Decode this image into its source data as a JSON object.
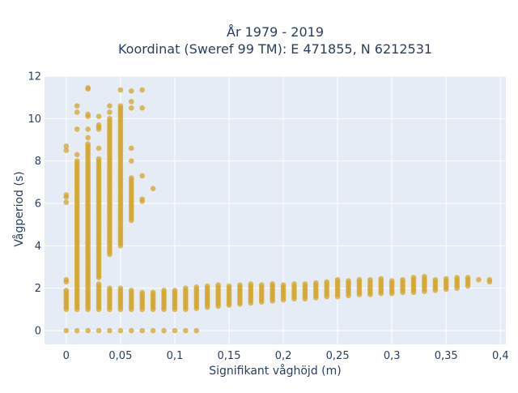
{
  "chart_data": {
    "type": "scatter",
    "title_line1": "År 1979 - 2019",
    "title_line2": "Koordinat (Sweref 99 TM): E 471855, N 6212531",
    "xlabel": "Signifikant våghöjd (m)",
    "ylabel": "Vågperiod (s)",
    "xlim": [
      -0.02,
      0.405
    ],
    "ylim": [
      -0.65,
      12.0
    ],
    "x_ticks": [
      0,
      0.05,
      0.1,
      0.15,
      0.2,
      0.25,
      0.3,
      0.35,
      0.4
    ],
    "x_tick_labels": [
      "0",
      "0,05",
      "0,1",
      "0,15",
      "0,2",
      "0,25",
      "0,3",
      "0,35",
      "0,4"
    ],
    "y_ticks": [
      0,
      2,
      4,
      6,
      8,
      10,
      12
    ],
    "y_tick_labels": [
      "0",
      "2",
      "4",
      "6",
      "8",
      "10",
      "12"
    ],
    "grid": true,
    "background_color": "#e5ecf6",
    "marker_color": "#d4a628",
    "series": [
      {
        "name": "",
        "columns": [
          {
            "x": 0.0,
            "y_ranges": [
              [
                1.0,
                1.9
              ]
            ],
            "y_points": [
              0,
              2.3,
              2.4,
              6.05,
              6.3,
              6.4,
              8.5,
              8.7
            ]
          },
          {
            "x": 0.01,
            "y_ranges": [
              [
                1.0,
                8.0
              ]
            ],
            "y_points": [
              0,
              8.3,
              9.5,
              10.3,
              10.6
            ]
          },
          {
            "x": 0.02,
            "y_ranges": [
              [
                1.0,
                8.8
              ]
            ],
            "y_points": [
              0,
              9.1,
              9.5,
              10.1,
              10.2,
              11.4,
              11.45
            ]
          },
          {
            "x": 0.03,
            "y_ranges": [
              [
                1.0,
                2.2
              ],
              [
                2.5,
                8.1
              ]
            ],
            "y_points": [
              0,
              8.6,
              9.5,
              9.6,
              9.7,
              10.1
            ]
          },
          {
            "x": 0.04,
            "y_ranges": [
              [
                1.0,
                2.0
              ],
              [
                3.6,
                10.0
              ]
            ],
            "y_points": [
              0,
              10.3,
              10.6
            ]
          },
          {
            "x": 0.05,
            "y_ranges": [
              [
                1.0,
                2.0
              ],
              [
                4.0,
                10.6
              ]
            ],
            "y_points": [
              0,
              11.35
            ]
          },
          {
            "x": 0.06,
            "y_ranges": [
              [
                1.0,
                1.9
              ],
              [
                5.2,
                7.2
              ]
            ],
            "y_points": [
              0,
              8.0,
              8.6,
              10.5,
              10.8,
              11.3
            ]
          },
          {
            "x": 0.07,
            "y_ranges": [
              [
                1.0,
                1.85
              ]
            ],
            "y_points": [
              0,
              6.1,
              6.2,
              7.3,
              10.5,
              11.35
            ]
          },
          {
            "x": 0.08,
            "y_ranges": [
              [
                1.0,
                1.85
              ]
            ],
            "y_points": [
              0,
              6.7
            ]
          },
          {
            "x": 0.09,
            "y_ranges": [
              [
                1.0,
                1.9
              ]
            ],
            "y_points": [
              0
            ]
          },
          {
            "x": 0.1,
            "y_ranges": [
              [
                1.0,
                1.95
              ]
            ],
            "y_points": [
              0
            ]
          },
          {
            "x": 0.11,
            "y_ranges": [
              [
                1.0,
                2.0
              ]
            ],
            "y_points": [
              0
            ]
          },
          {
            "x": 0.12,
            "y_ranges": [
              [
                1.05,
                2.05
              ]
            ],
            "y_points": [
              0
            ]
          },
          {
            "x": 0.13,
            "y_ranges": [
              [
                1.1,
                2.1
              ]
            ],
            "y_points": []
          },
          {
            "x": 0.14,
            "y_ranges": [
              [
                1.15,
                2.15
              ]
            ],
            "y_points": []
          },
          {
            "x": 0.15,
            "y_ranges": [
              [
                1.2,
                2.15
              ]
            ],
            "y_points": []
          },
          {
            "x": 0.16,
            "y_ranges": [
              [
                1.25,
                2.15
              ]
            ],
            "y_points": []
          },
          {
            "x": 0.17,
            "y_ranges": [
              [
                1.3,
                2.2
              ]
            ],
            "y_points": []
          },
          {
            "x": 0.18,
            "y_ranges": [
              [
                1.35,
                2.2
              ]
            ],
            "y_points": []
          },
          {
            "x": 0.19,
            "y_ranges": [
              [
                1.4,
                2.2
              ]
            ],
            "y_points": []
          },
          {
            "x": 0.2,
            "y_ranges": [
              [
                1.45,
                2.2
              ]
            ],
            "y_points": []
          },
          {
            "x": 0.21,
            "y_ranges": [
              [
                1.5,
                2.2
              ]
            ],
            "y_points": []
          },
          {
            "x": 0.22,
            "y_ranges": [
              [
                1.5,
                2.25
              ]
            ],
            "y_points": []
          },
          {
            "x": 0.23,
            "y_ranges": [
              [
                1.55,
                2.3
              ]
            ],
            "y_points": []
          },
          {
            "x": 0.24,
            "y_ranges": [
              [
                1.6,
                2.35
              ]
            ],
            "y_points": []
          },
          {
            "x": 0.25,
            "y_ranges": [
              [
                1.6,
                2.4
              ]
            ],
            "y_points": []
          },
          {
            "x": 0.26,
            "y_ranges": [
              [
                1.65,
                2.4
              ]
            ],
            "y_points": []
          },
          {
            "x": 0.27,
            "y_ranges": [
              [
                1.7,
                2.4
              ]
            ],
            "y_points": []
          },
          {
            "x": 0.28,
            "y_ranges": [
              [
                1.7,
                2.4
              ]
            ],
            "y_points": []
          },
          {
            "x": 0.29,
            "y_ranges": [
              [
                1.75,
                2.45
              ]
            ],
            "y_points": []
          },
          {
            "x": 0.3,
            "y_ranges": [
              [
                1.75,
                2.4
              ]
            ],
            "y_points": []
          },
          {
            "x": 0.31,
            "y_ranges": [
              [
                1.8,
                2.45
              ]
            ],
            "y_points": []
          },
          {
            "x": 0.32,
            "y_ranges": [
              [
                1.8,
                2.5
              ]
            ],
            "y_points": []
          },
          {
            "x": 0.33,
            "y_ranges": [
              [
                1.85,
                2.6
              ]
            ],
            "y_points": []
          },
          {
            "x": 0.34,
            "y_ranges": [
              [
                1.9,
                2.4
              ]
            ],
            "y_points": []
          },
          {
            "x": 0.35,
            "y_ranges": [
              [
                1.95,
                2.45
              ]
            ],
            "y_points": []
          },
          {
            "x": 0.36,
            "y_ranges": [
              [
                2.0,
                2.55
              ]
            ],
            "y_points": []
          },
          {
            "x": 0.37,
            "y_ranges": [
              [
                2.1,
                2.5
              ]
            ],
            "y_points": []
          },
          {
            "x": 0.38,
            "y_ranges": [],
            "y_points": [
              2.4
            ]
          },
          {
            "x": 0.39,
            "y_ranges": [],
            "y_points": [
              2.3,
              2.4
            ]
          }
        ]
      }
    ]
  }
}
